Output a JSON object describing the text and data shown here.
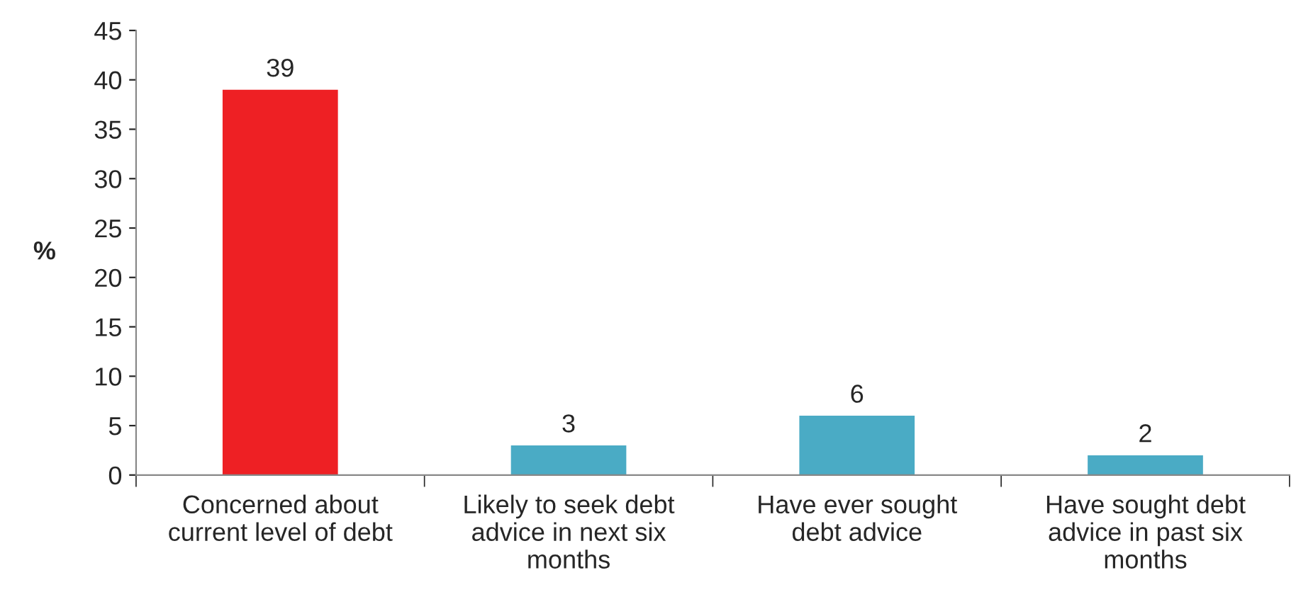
{
  "chart_data": {
    "type": "bar",
    "ylabel": "%",
    "categories": [
      "Concerned about\ncurrent level of debt",
      "Likely to seek debt\nadvice in next six\nmonths",
      "Have ever sought\ndebt advice",
      "Have sought debt\nadvice in past six\nmonths"
    ],
    "values": [
      39,
      3,
      6,
      2
    ],
    "colors": [
      "#ee2024",
      "#4aabc5",
      "#4aabc5",
      "#4aabc5"
    ],
    "ylim": [
      0,
      45
    ],
    "yticks": [
      0,
      5,
      10,
      15,
      20,
      25,
      30,
      35,
      40,
      45
    ],
    "data_labels": true,
    "grid": false,
    "legend": false
  }
}
